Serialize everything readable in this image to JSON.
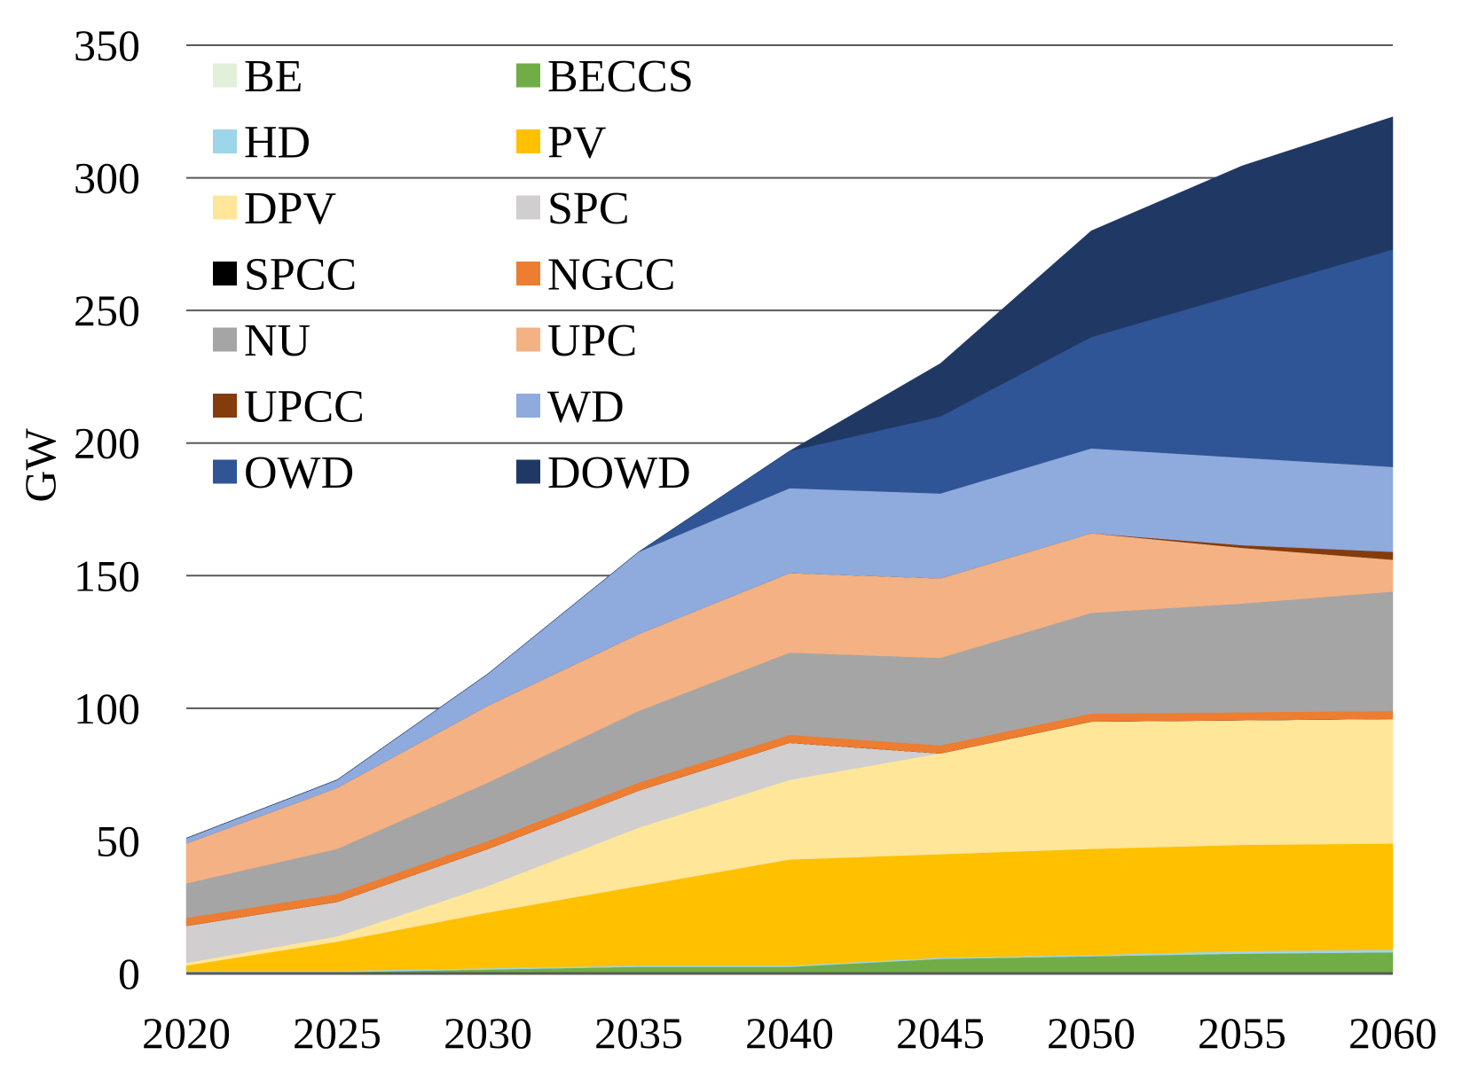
{
  "chart_data": {
    "type": "area",
    "stacked": true,
    "title": "",
    "xlabel": "",
    "ylabel": "GW",
    "ylim": [
      0,
      350
    ],
    "yticks": [
      0,
      50,
      100,
      150,
      200,
      250,
      300,
      350
    ],
    "grid": "horizontal",
    "legend_position": "top-left",
    "x": [
      2020,
      2025,
      2030,
      2035,
      2040,
      2045,
      2050,
      2055,
      2060
    ],
    "series": [
      {
        "name": "BE",
        "color": "#e2f0d9",
        "values": [
          0.5,
          0.5,
          0.5,
          0.5,
          0.5,
          0.5,
          0.5,
          0.5,
          0.5
        ]
      },
      {
        "name": "BECCS",
        "color": "#70ad47",
        "values": [
          0,
          0,
          1,
          2,
          2,
          5,
          6,
          7,
          7.5
        ]
      },
      {
        "name": "HD",
        "color": "#9dd5ea",
        "values": [
          0.5,
          0.5,
          0.5,
          0.5,
          0.5,
          0.5,
          0.5,
          1,
          1
        ]
      },
      {
        "name": "PV",
        "color": "#ffc000",
        "values": [
          2,
          11,
          21,
          30,
          40,
          39,
          40,
          40,
          40
        ]
      },
      {
        "name": "DPV",
        "color": "#ffe699",
        "values": [
          1,
          2,
          10,
          22,
          30,
          38,
          48,
          47,
          47
        ]
      },
      {
        "name": "SPC",
        "color": "#d0cece",
        "values": [
          14,
          13,
          14,
          14,
          14,
          0,
          0,
          0,
          0
        ]
      },
      {
        "name": "SPCC",
        "color": "#000000",
        "values": [
          0,
          0,
          0,
          0,
          0,
          0,
          0,
          0,
          0
        ]
      },
      {
        "name": "NGCC",
        "color": "#ed7d31",
        "values": [
          3,
          3,
          3,
          3,
          3,
          3,
          3,
          3,
          3
        ]
      },
      {
        "name": "NU",
        "color": "#a5a5a5",
        "values": [
          13,
          17,
          22,
          27,
          31,
          33,
          38,
          41,
          45
        ]
      },
      {
        "name": "UPC",
        "color": "#f4b183",
        "values": [
          15,
          23,
          29,
          29,
          30,
          30,
          30,
          21,
          12
        ]
      },
      {
        "name": "UPCC",
        "color": "#843c0c",
        "values": [
          0,
          0,
          0,
          0,
          0,
          0,
          0,
          1,
          3
        ]
      },
      {
        "name": "WD",
        "color": "#8faadc",
        "values": [
          2,
          3,
          12,
          31,
          32,
          32,
          32,
          33,
          32
        ]
      },
      {
        "name": "OWD",
        "color": "#2f5597",
        "values": [
          0,
          0,
          0,
          0,
          14,
          29,
          42,
          62,
          82
        ]
      },
      {
        "name": "DOWD",
        "color": "#203864",
        "values": [
          0,
          0,
          0,
          0,
          0,
          20,
          40,
          48,
          50
        ]
      }
    ]
  }
}
